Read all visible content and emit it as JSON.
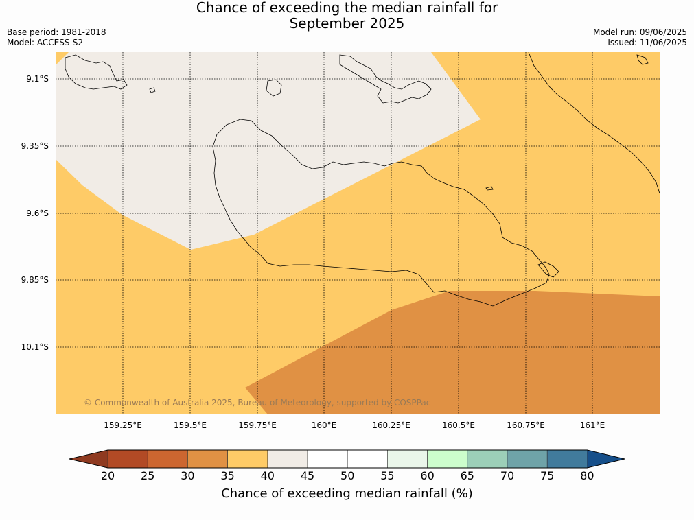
{
  "title_line1": "Chance of exceeding the median rainfall for",
  "title_line2": "September 2025",
  "base_period": "Base period: 1981-2018",
  "model": "Model: ACCESS-S2",
  "model_run": "Model run: 09/06/2025",
  "issued": "Issued: 11/06/2025",
  "copyright": "© Commonwealth of Australia 2025, Bureau of Meteorology, supported by COSPPac",
  "lat_labels": [
    "9.1°S",
    "9.35°S",
    "9.6°S",
    "9.85°S",
    "10.1°S"
  ],
  "lon_labels": [
    "159.25°E",
    "159.5°E",
    "159.75°E",
    "160°E",
    "160.25°E",
    "160.5°E",
    "160.75°E",
    "161°E"
  ],
  "colorbar": {
    "title": "Chance of exceeding median rainfall (%)",
    "ticks": [
      "20",
      "25",
      "30",
      "35",
      "40",
      "45",
      "50",
      "55",
      "60",
      "65",
      "70",
      "75",
      "80"
    ],
    "under_color": "#8f3a20",
    "over_color": "#164f8a",
    "colors": [
      "#b24a25",
      "#cc6630",
      "#e09144",
      "#fecb67",
      "#f1ece6",
      "#ffffff",
      "#ffffff",
      "#eaf6ea",
      "#ccfdcc",
      "#9ccfb8",
      "#6fa3a8",
      "#417b9c"
    ]
  },
  "map_colors": {
    "class_35_40": "#fecb67",
    "class_40_45": "#f1ece6",
    "class_30_35": "#e09144"
  }
}
